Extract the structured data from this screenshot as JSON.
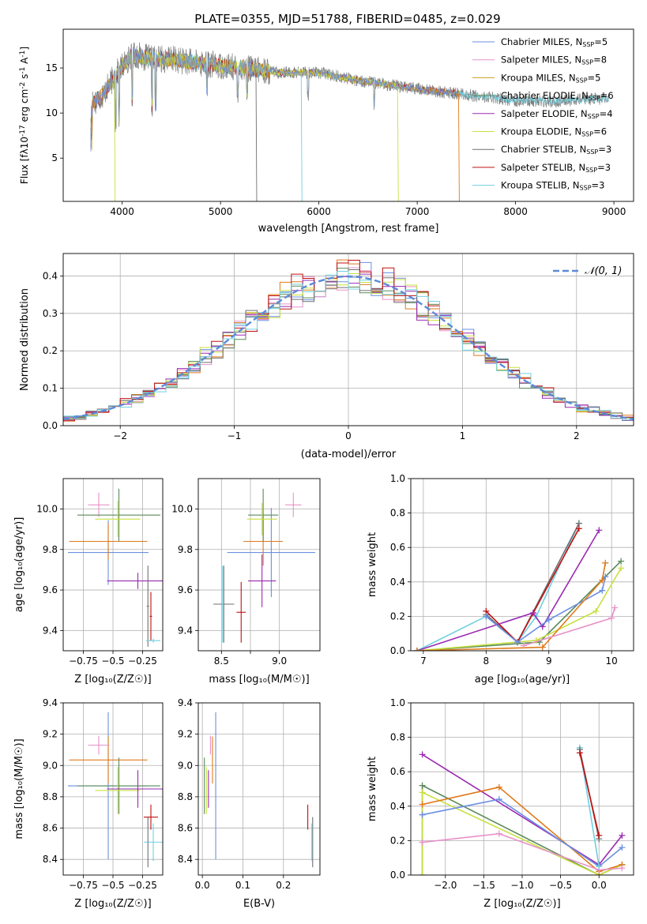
{
  "title": "PLATE=0355, MJD=51788, FIBERID=0485, z=0.029",
  "colors": {
    "chabrier_miles": "#6b8fe0",
    "salpeter_miles": "#e892c8",
    "kroupa_miles": "#c8a020",
    "chabrier_elodie": "#5a8a5a",
    "salpeter_elodie": "#9a2ab0",
    "kroupa_elodie": "#c8e040",
    "chabrier_stelib": "#707070",
    "salpeter_stelib": "#c01010",
    "kroupa_stelib": "#70d0e0",
    "orange": "#e07a1a",
    "normal_curve": "#5b8bd8"
  },
  "chart_data": [
    {
      "id": "spectrum",
      "type": "line",
      "xlabel": "wavelength [Angstrom, rest frame]",
      "ylabel": "Flux [f_λ10^-17 erg cm^-2 s^-1 A^-1]",
      "xlim": [
        3400,
        9200
      ],
      "ylim": [
        0.2,
        19.3
      ],
      "xticks": [
        4000,
        5000,
        6000,
        7000,
        8000,
        9000
      ],
      "yticks": [
        5,
        10,
        15
      ],
      "legend_position": "top-right",
      "legend": [
        {
          "label": "Chabrier MILES, N",
          "sub": "SSP",
          "suffix": "=5",
          "color_key": "chabrier_miles"
        },
        {
          "label": "Salpeter MILES, N",
          "sub": "SSP",
          "suffix": "=8",
          "color_key": "salpeter_miles"
        },
        {
          "label": "Kroupa MILES, N",
          "sub": "SSP",
          "suffix": "=5",
          "color_key": "kroupa_miles"
        },
        {
          "label": "Chabrier ELODIE, N",
          "sub": "SSP",
          "suffix": "=6",
          "color_key": "chabrier_elodie"
        },
        {
          "label": "Salpeter ELODIE, N",
          "sub": "SSP",
          "suffix": "=4",
          "color_key": "salpeter_elodie"
        },
        {
          "label": "Kroupa ELODIE, N",
          "sub": "SSP",
          "suffix": "=6",
          "color_key": "kroupa_elodie"
        },
        {
          "label": "Chabrier STELIB, N",
          "sub": "SSP",
          "suffix": "=3",
          "color_key": "chabrier_stelib"
        },
        {
          "label": "Salpeter STELIB, N",
          "sub": "SSP",
          "suffix": "=3",
          "color_key": "salpeter_stelib"
        },
        {
          "label": "Kroupa STELIB, N",
          "sub": "SSP",
          "suffix": "=3",
          "color_key": "kroupa_stelib"
        }
      ],
      "continuum": [
        [
          3680,
          11.0
        ],
        [
          3800,
          12.0
        ],
        [
          3950,
          14.5
        ],
        [
          4100,
          16.5
        ],
        [
          4300,
          16.0
        ],
        [
          4500,
          16.0
        ],
        [
          4800,
          15.5
        ],
        [
          5200,
          15.0
        ],
        [
          5600,
          14.5
        ],
        [
          6000,
          14.5
        ],
        [
          6400,
          13.6
        ],
        [
          6800,
          13.0
        ],
        [
          7200,
          12.4
        ],
        [
          7600,
          11.9
        ],
        [
          8000,
          11.4
        ],
        [
          8400,
          11.3
        ],
        [
          8800,
          11.6
        ]
      ],
      "series_ranges": [
        {
          "color_key": "chabrier_stelib",
          "x": [
            3680,
            8950
          ]
        },
        {
          "color_key": "kroupa_stelib",
          "x": [
            3680,
            8950
          ]
        },
        {
          "color_key": "salpeter_stelib",
          "x": [
            3680,
            7420
          ]
        },
        {
          "color_key": "kroupa_miles",
          "x": [
            3680,
            7420
          ]
        },
        {
          "color_key": "kroupa_elodie",
          "x": [
            3900,
            6800
          ]
        },
        {
          "color_key": "chabrier_miles",
          "x": [
            3680,
            7420
          ]
        }
      ]
    },
    {
      "id": "residuals",
      "type": "histogram",
      "xlabel": "(data-model)/error",
      "ylabel": "Normed distribution",
      "xlim": [
        -2.5,
        2.5
      ],
      "ylim": [
        0,
        0.46
      ],
      "xticks": [
        -2,
        -1,
        0,
        1,
        2
      ],
      "yticks": [
        0.0,
        0.1,
        0.2,
        0.3,
        0.4
      ],
      "legend_position": "top-right",
      "legend_label": "𝒩(0, 1)",
      "series_color_keys": [
        "chabrier_miles",
        "salpeter_miles",
        "orange",
        "chabrier_elodie",
        "salpeter_elodie",
        "kroupa_elodie",
        "chabrier_stelib",
        "salpeter_stelib",
        "kroupa_stelib"
      ]
    },
    {
      "id": "z_age",
      "type": "scatter",
      "xlabel": "Z [log₁₀(Z/Z☉)]",
      "ylabel": "age  [log₁₀(age/yr)]",
      "xlim": [
        -0.92,
        -0.08
      ],
      "ylim": [
        9.3,
        10.15
      ],
      "xticks": [
        -0.75,
        -0.5,
        -0.25
      ],
      "yticks": [
        9.4,
        9.6,
        9.8,
        10.0
      ],
      "points": [
        {
          "color_key": "chabrier_miles",
          "x": -0.54,
          "y": 9.785,
          "xerr": 0.34,
          "yerr": 0.16
        },
        {
          "color_key": "orange",
          "x": -0.54,
          "y": 9.84,
          "xerr": 0.33,
          "yerr": 0.09
        },
        {
          "color_key": "salpeter_miles",
          "x": -0.62,
          "y": 10.02,
          "xerr": 0.09,
          "yerr": 0.06
        },
        {
          "color_key": "chabrier_elodie",
          "x": -0.45,
          "y": 9.97,
          "xerr": 0.35,
          "yerr": 0.13
        },
        {
          "color_key": "kroupa_elodie",
          "x": -0.46,
          "y": 9.95,
          "xerr": 0.19,
          "yerr": 0.09
        },
        {
          "color_key": "salpeter_elodie",
          "x": -0.29,
          "y": 9.645,
          "xerr": 0.26,
          "yerr": 0.04
        },
        {
          "color_key": "chabrier_stelib",
          "x": -0.205,
          "y": 9.52,
          "xerr": 0.01,
          "yerr": 0.2
        },
        {
          "color_key": "salpeter_stelib",
          "x": -0.18,
          "y": 9.47,
          "xerr": 0.01,
          "yerr": 0.12
        },
        {
          "color_key": "kroupa_stelib",
          "x": -0.16,
          "y": 9.35,
          "xerr": 0.06,
          "yerr": 0.01
        }
      ]
    },
    {
      "id": "mass_age",
      "type": "scatter",
      "xlabel": "mass [log₁₀(M/M☉)]",
      "ylabel": "",
      "xlim": [
        8.3,
        9.35
      ],
      "ylim": [
        9.3,
        10.15
      ],
      "xticks": [
        8.5,
        8.75,
        9.0
      ],
      "yticks": [
        9.4,
        9.6,
        9.8,
        10.0
      ],
      "points": [
        {
          "color_key": "chabrier_miles",
          "x": 8.93,
          "y": 9.785,
          "xerr": 0.38,
          "yerr": 0.22
        },
        {
          "color_key": "orange",
          "x": 8.86,
          "y": 9.84,
          "xerr": 0.17,
          "yerr": 0.12
        },
        {
          "color_key": "salpeter_miles",
          "x": 9.12,
          "y": 10.02,
          "xerr": 0.07,
          "yerr": 0.06
        },
        {
          "color_key": "chabrier_elodie",
          "x": 8.86,
          "y": 9.97,
          "xerr": 0.13,
          "yerr": 0.13
        },
        {
          "color_key": "kroupa_elodie",
          "x": 8.85,
          "y": 9.95,
          "xerr": 0.13,
          "yerr": 0.08
        },
        {
          "color_key": "salpeter_elodie",
          "x": 8.85,
          "y": 9.645,
          "xerr": 0.12,
          "yerr": 0.13
        },
        {
          "color_key": "chabrier_stelib",
          "x": 8.52,
          "y": 9.53,
          "xerr": 0.09,
          "yerr": 0.19
        },
        {
          "color_key": "salpeter_stelib",
          "x": 8.67,
          "y": 9.49,
          "xerr": 0.04,
          "yerr": 0.15
        },
        {
          "color_key": "kroupa_stelib",
          "x": 8.51,
          "y": 9.53,
          "xerr": 0.005,
          "yerr": 0.19
        }
      ]
    },
    {
      "id": "age_weight",
      "type": "line",
      "xlabel": "age  [log₁₀(age/yr)]",
      "ylabel": "mass weight",
      "xlim": [
        6.8,
        10.35
      ],
      "ylim": [
        0.0,
        1.0
      ],
      "xticks": [
        7,
        8,
        9,
        10
      ],
      "yticks": [
        0.0,
        0.2,
        0.4,
        0.6,
        0.8,
        1.0
      ],
      "series": [
        {
          "color_key": "kroupa_stelib",
          "x": [
            6.9,
            8.0,
            8.5,
            8.8,
            9.48
          ],
          "y": [
            0.0,
            0.2,
            0.05,
            0.2,
            0.74
          ]
        },
        {
          "color_key": "chabrier_stelib",
          "x": [
            8.0,
            8.5,
            9.48
          ],
          "y": [
            0.21,
            0.05,
            0.74
          ]
        },
        {
          "color_key": "salpeter_stelib",
          "x": [
            8.0,
            8.5,
            9.48
          ],
          "y": [
            0.23,
            0.05,
            0.71
          ]
        },
        {
          "color_key": "salpeter_elodie",
          "x": [
            6.9,
            8.75,
            8.9,
            9.8
          ],
          "y": [
            0.0,
            0.22,
            0.14,
            0.7
          ]
        },
        {
          "color_key": "chabrier_elodie",
          "x": [
            6.9,
            8.85,
            10.15
          ],
          "y": [
            0.0,
            0.05,
            0.52
          ]
        },
        {
          "color_key": "kroupa_elodie",
          "x": [
            6.9,
            8.8,
            9.75,
            10.15
          ],
          "y": [
            0.0,
            0.06,
            0.23,
            0.48
          ]
        },
        {
          "color_key": "chabrier_miles",
          "x": [
            8.0,
            8.5,
            9.0,
            9.85,
            9.9
          ],
          "y": [
            0.2,
            0.05,
            0.18,
            0.35,
            0.43
          ]
        },
        {
          "color_key": "orange",
          "x": [
            6.9,
            8.9,
            9.85,
            9.9
          ],
          "y": [
            0.0,
            0.02,
            0.41,
            0.51
          ]
        },
        {
          "color_key": "salpeter_miles",
          "x": [
            8.6,
            10.0,
            10.05
          ],
          "y": [
            0.03,
            0.19,
            0.25
          ]
        }
      ]
    },
    {
      "id": "z_mass",
      "type": "scatter",
      "xlabel": "Z [log₁₀(Z/Z☉)]",
      "ylabel": "mass [log₁₀(M/M☉)]",
      "xlim": [
        -0.92,
        -0.08
      ],
      "ylim": [
        8.3,
        9.4
      ],
      "xticks": [
        -0.75,
        -0.5,
        -0.25
      ],
      "yticks": [
        8.4,
        8.6,
        8.8,
        9.0,
        9.2,
        9.4
      ],
      "points": [
        {
          "color_key": "chabrier_miles",
          "x": -0.54,
          "y": 8.87,
          "xerr": 0.34,
          "yerr": 0.47
        },
        {
          "color_key": "orange",
          "x": -0.54,
          "y": 9.035,
          "xerr": 0.33,
          "yerr": 0.15
        },
        {
          "color_key": "salpeter_miles",
          "x": -0.62,
          "y": 9.13,
          "xerr": 0.09,
          "yerr": 0.06
        },
        {
          "color_key": "chabrier_elodie",
          "x": -0.45,
          "y": 8.87,
          "xerr": 0.35,
          "yerr": 0.18
        },
        {
          "color_key": "kroupa_elodie",
          "x": -0.46,
          "y": 8.84,
          "xerr": 0.19,
          "yerr": 0.15
        },
        {
          "color_key": "salpeter_elodie",
          "x": -0.29,
          "y": 8.85,
          "xerr": 0.26,
          "yerr": 0.12
        },
        {
          "color_key": "chabrier_stelib",
          "x": -0.205,
          "y": 8.51,
          "xerr": 0.01,
          "yerr": 0.16
        },
        {
          "color_key": "salpeter_stelib",
          "x": -0.18,
          "y": 8.67,
          "xerr": 0.06,
          "yerr": 0.08
        },
        {
          "color_key": "kroupa_stelib",
          "x": -0.16,
          "y": 8.51,
          "xerr": 0.08,
          "yerr": 0.12
        }
      ]
    },
    {
      "id": "ebv_mass",
      "type": "scatter",
      "xlabel": "E(B-V)",
      "ylabel": "",
      "xlim": [
        -0.01,
        0.29
      ],
      "ylim": [
        8.3,
        9.4
      ],
      "xticks": [
        0.0,
        0.1,
        0.2
      ],
      "yticks": [
        8.4,
        8.6,
        8.8,
        9.0,
        9.2,
        9.4
      ],
      "points": [
        {
          "color_key": "chabrier_miles",
          "x": 0.033,
          "y": 8.87,
          "xerr": 0,
          "yerr": 0.47
        },
        {
          "color_key": "orange",
          "x": 0.025,
          "y": 9.035,
          "xerr": 0,
          "yerr": 0.15
        },
        {
          "color_key": "salpeter_miles",
          "x": 0.02,
          "y": 9.13,
          "xerr": 0,
          "yerr": 0.06
        },
        {
          "color_key": "chabrier_elodie",
          "x": 0.005,
          "y": 8.87,
          "xerr": 0,
          "yerr": 0.18
        },
        {
          "color_key": "kroupa_elodie",
          "x": 0.01,
          "y": 8.84,
          "xerr": 0,
          "yerr": 0.15
        },
        {
          "color_key": "salpeter_elodie",
          "x": 0.015,
          "y": 8.85,
          "xerr": 0,
          "yerr": 0.12
        },
        {
          "color_key": "chabrier_stelib",
          "x": 0.272,
          "y": 8.51,
          "xerr": 0,
          "yerr": 0.16
        },
        {
          "color_key": "salpeter_stelib",
          "x": 0.26,
          "y": 8.67,
          "xerr": 0,
          "yerr": 0.08
        },
        {
          "color_key": "kroupa_stelib",
          "x": 0.27,
          "y": 8.51,
          "xerr": 0,
          "yerr": 0.12
        }
      ]
    },
    {
      "id": "z_weight",
      "type": "line",
      "xlabel": "Z [log₁₀(Z/Z☉)]",
      "ylabel": "mass weight",
      "xlim": [
        -2.45,
        0.45
      ],
      "ylim": [
        0.0,
        1.0
      ],
      "xticks": [
        -2.0,
        -1.5,
        -1.0,
        -0.5,
        0.0
      ],
      "yticks": [
        0.0,
        0.2,
        0.4,
        0.6,
        0.8,
        1.0
      ],
      "series": [
        {
          "color_key": "salpeter_elodie",
          "x": [
            -2.3,
            0.0,
            0.3
          ],
          "y": [
            0.7,
            0.06,
            0.23
          ]
        },
        {
          "color_key": "chabrier_elodie",
          "x": [
            -2.3,
            -2.3,
            0.0,
            0.3
          ],
          "y": [
            0.0,
            0.52,
            0.0,
            0.06
          ]
        },
        {
          "color_key": "kroupa_elodie",
          "x": [
            -2.3,
            -2.3,
            0.0,
            0.3
          ],
          "y": [
            0.0,
            0.48,
            0.0,
            0.06
          ]
        },
        {
          "color_key": "orange",
          "x": [
            -2.3,
            -1.3,
            0.0,
            0.3
          ],
          "y": [
            0.41,
            0.51,
            0.02,
            0.06
          ]
        },
        {
          "color_key": "chabrier_miles",
          "x": [
            -2.3,
            -1.3,
            0.0,
            0.3
          ],
          "y": [
            0.35,
            0.44,
            0.05,
            0.16
          ]
        },
        {
          "color_key": "salpeter_miles",
          "x": [
            -2.3,
            -1.3,
            0.0,
            0.3
          ],
          "y": [
            0.19,
            0.24,
            0.03,
            0.04
          ]
        },
        {
          "color_key": "kroupa_stelib",
          "x": [
            -0.25,
            0.0
          ],
          "y": [
            0.74,
            0.05
          ]
        },
        {
          "color_key": "chabrier_stelib",
          "x": [
            -0.25,
            0.0
          ],
          "y": [
            0.73,
            0.21
          ]
        },
        {
          "color_key": "salpeter_stelib",
          "x": [
            -0.25,
            0.0
          ],
          "y": [
            0.71,
            0.23
          ]
        }
      ]
    }
  ]
}
